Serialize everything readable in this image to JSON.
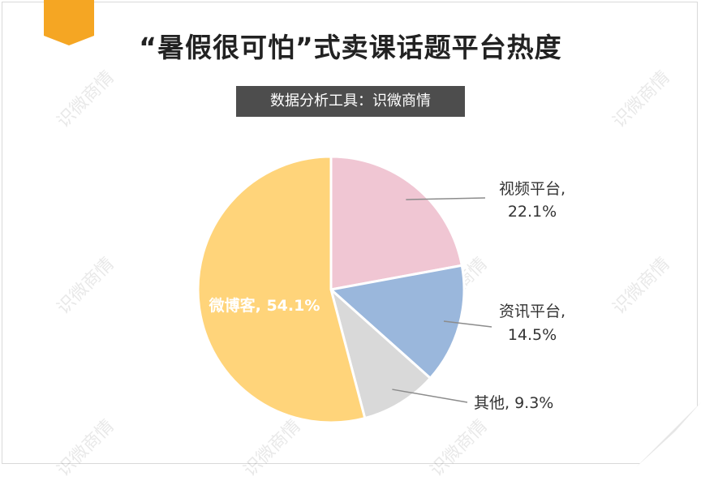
{
  "title": "“暑假很可怕”式卖课话题平台热度",
  "subtitle": "数据分析工具：识微商情",
  "watermark": "识微商情",
  "chart_data": {
    "type": "pie",
    "title": "“暑假很可怕”式卖课话题平台热度",
    "subtitle": "数据分析工具：识微商情",
    "slices": [
      {
        "label": "视频平台",
        "pct_label": "22.1%",
        "value": 22.1,
        "color": "#f0c6d3"
      },
      {
        "label": "资讯平台",
        "pct_label": "14.5%",
        "value": 14.5,
        "color": "#9ab7dc"
      },
      {
        "label": "其他",
        "pct_label": "9.3%",
        "value": 9.3,
        "color": "#d9d9d9"
      },
      {
        "label": "微博客",
        "pct_label": "54.1%",
        "value": 54.1,
        "color": "#ffd47a"
      }
    ],
    "legend": "none"
  },
  "colors": {
    "accent_orange": "#f5a623",
    "subtitle_bg": "#4d4d4d"
  }
}
